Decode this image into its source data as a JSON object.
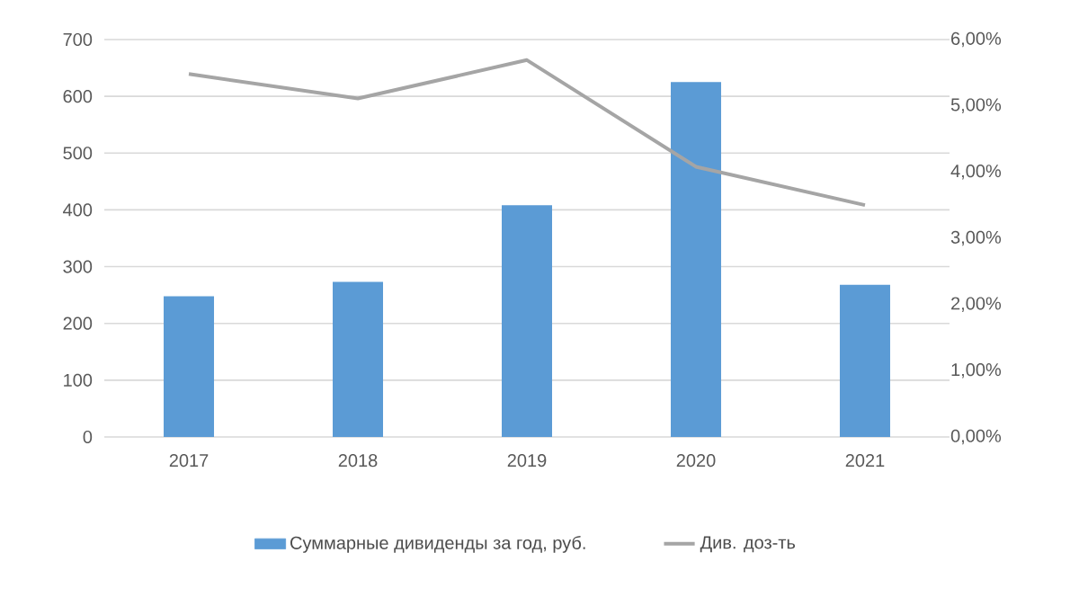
{
  "chart_data": {
    "type": "bar",
    "categories": [
      "2017",
      "2018",
      "2019",
      "2020",
      "2021"
    ],
    "series": [
      {
        "name": "Суммарные дивиденды за год, руб.",
        "color": "#5b9bd5",
        "values": [
          248,
          273,
          408,
          625,
          268
        ]
      },
      {
        "name": "Див. доз-ть",
        "type": "line",
        "color": "#a5a5a5",
        "axis": "y2",
        "values": [
          5.48,
          5.11,
          5.69,
          4.08,
          3.5
        ]
      }
    ],
    "ylim": [
      0,
      700
    ],
    "yticks": [
      0,
      100,
      200,
      300,
      400,
      500,
      600,
      700
    ],
    "y2lim": [
      0,
      6
    ],
    "y2ticks": [
      {
        "value": 0,
        "label": "0,00%"
      },
      {
        "value": 1,
        "label": "1,00%"
      },
      {
        "value": 2,
        "label": "2,00%"
      },
      {
        "value": 3,
        "label": "3,00%"
      },
      {
        "value": 4,
        "label": "4,00%"
      },
      {
        "value": 5,
        "label": "5,00%"
      },
      {
        "value": 6,
        "label": "6,00%"
      }
    ],
    "grid": "y",
    "legend": "bottom",
    "marker": "none",
    "line_style": "solid"
  }
}
